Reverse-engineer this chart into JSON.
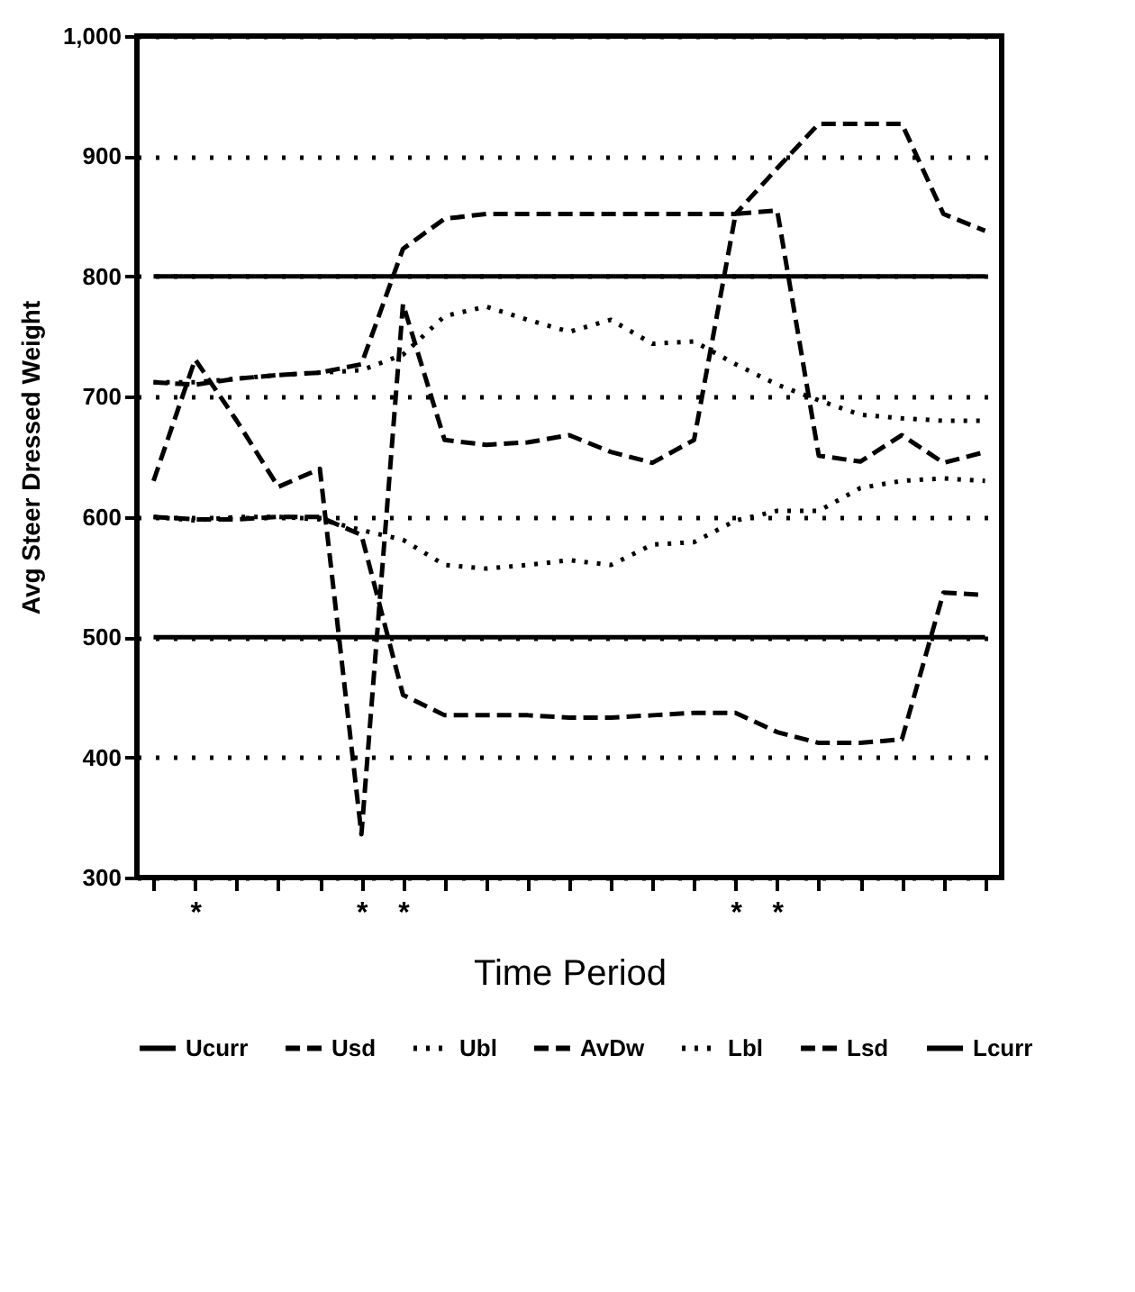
{
  "chart_data": {
    "type": "line",
    "xlabel": "Time Period",
    "ylabel": "Avg Steer Dressed Weight",
    "categories": [
      null,
      "*",
      null,
      null,
      null,
      "*",
      "*",
      null,
      null,
      null,
      null,
      null,
      null,
      null,
      "*",
      "*",
      null,
      null,
      null,
      null,
      null
    ],
    "ylim": [
      300,
      1000
    ],
    "yticks": [
      300,
      400,
      500,
      600,
      700,
      800,
      900,
      {
        "value": 1000,
        "label": "1,000"
      }
    ],
    "grid": "y",
    "legend": "bottom",
    "marker": "none",
    "series": [
      {
        "name": "Ucurr",
        "color": "#000000",
        "line_style": "solid",
        "values": [
          800,
          800,
          800,
          800,
          800,
          800,
          800,
          800,
          800,
          800,
          800,
          800,
          800,
          800,
          800,
          800,
          800,
          800,
          800,
          800,
          800
        ]
      },
      {
        "name": "Usd",
        "color": "#000000",
        "line_style": "dashed",
        "values": [
          712,
          710,
          715,
          718,
          720,
          727,
          823,
          848,
          852,
          852,
          852,
          852,
          852,
          852,
          852,
          890,
          927,
          927,
          927,
          852,
          838
        ]
      },
      {
        "name": "Ubl",
        "color": "#000000",
        "line_style": "dotted",
        "values": [
          712,
          712,
          715,
          718,
          720,
          722,
          735,
          767,
          775,
          764,
          754,
          764,
          744,
          746,
          727,
          710,
          697,
          685,
          682,
          680,
          680
        ]
      },
      {
        "name": "AvDw",
        "color": "#000000",
        "line_style": "dashed",
        "values": [
          630,
          731,
          680,
          625,
          640,
          336,
          777,
          664,
          660,
          662,
          668,
          654,
          645,
          664,
          852,
          855,
          651,
          646,
          668,
          645,
          654
        ]
      },
      {
        "name": "Lbl",
        "color": "#000000",
        "line_style": "dotted",
        "values": [
          600,
          597,
          600,
          600,
          598,
          589,
          581,
          560,
          557,
          560,
          564,
          560,
          577,
          579,
          597,
          605,
          605,
          624,
          630,
          632,
          630
        ]
      },
      {
        "name": "Lsd",
        "color": "#000000",
        "line_style": "dashed",
        "values": [
          600,
          598,
          598,
          600,
          600,
          585,
          452,
          435,
          435,
          435,
          433,
          433,
          435,
          437,
          437,
          421,
          412,
          412,
          415,
          537,
          535
        ]
      },
      {
        "name": "Lcurr",
        "color": "#000000",
        "line_style": "solid",
        "values": [
          500,
          500,
          500,
          500,
          500,
          500,
          500,
          500,
          500,
          500,
          500,
          500,
          500,
          500,
          500,
          500,
          500,
          500,
          500,
          500,
          500
        ]
      }
    ]
  }
}
